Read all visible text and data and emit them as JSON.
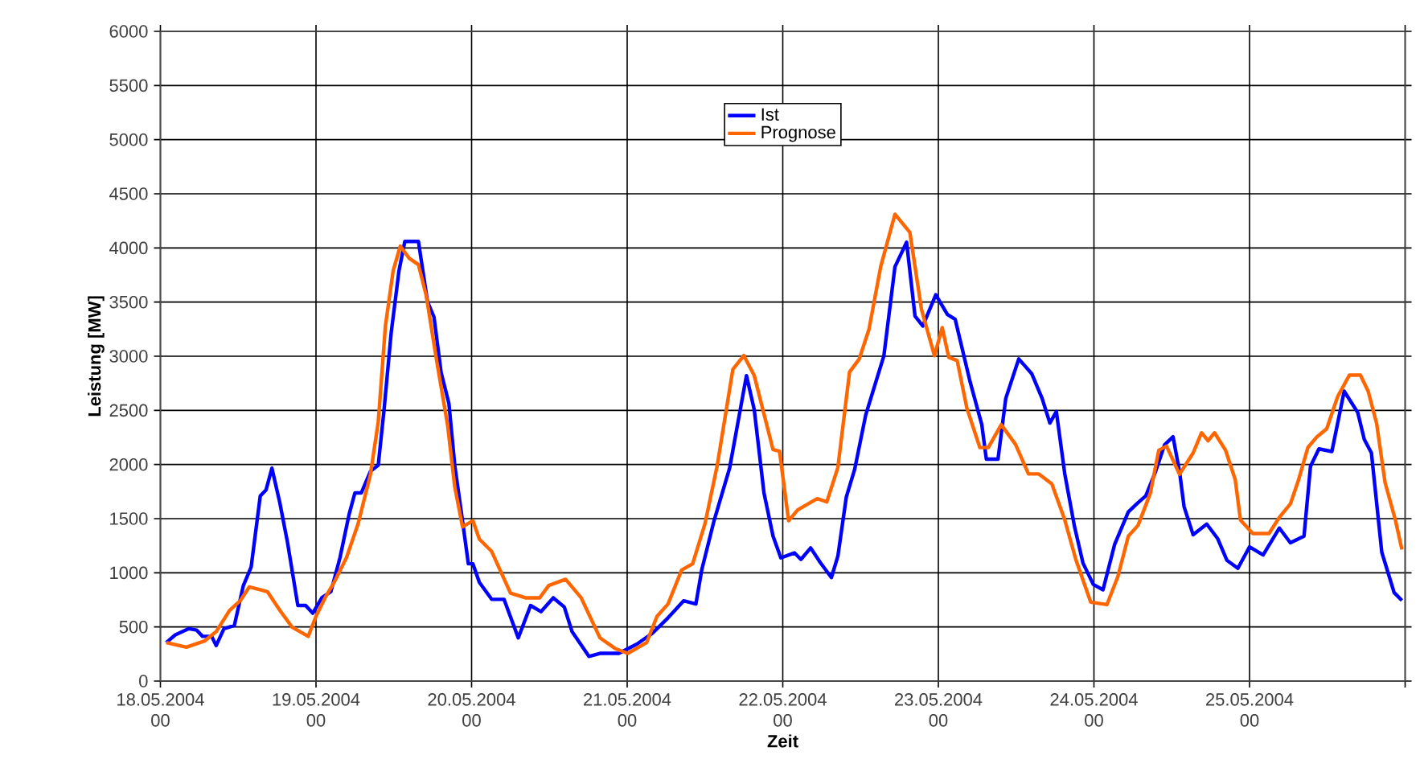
{
  "chart_data": {
    "type": "line",
    "xlabel": "Zeit",
    "ylabel": "Leistung [MW]",
    "xlim": [
      "2004-05-18T00:00",
      "2004-05-26T00:00"
    ],
    "ylim": [
      0,
      6000
    ],
    "xticks": [
      {
        "value": "2004-05-18T00:00",
        "label": "18.05.2004 00"
      },
      {
        "value": "2004-05-19T00:00",
        "label": "19.05.2004 00"
      },
      {
        "value": "2004-05-20T00:00",
        "label": "20.05.2004 00"
      },
      {
        "value": "2004-05-21T00:00",
        "label": "21.05.2004 00"
      },
      {
        "value": "2004-05-22T00:00",
        "label": "22.05.2004 00"
      },
      {
        "value": "2004-05-23T00:00",
        "label": "23.05.2004 00"
      },
      {
        "value": "2004-05-24T00:00",
        "label": "24.05.2004 00"
      },
      {
        "value": "2004-05-25T00:00",
        "label": "25.05.2004 00"
      },
      {
        "value": "2004-05-26T00:00",
        "label": null
      }
    ],
    "yticks": [
      0,
      500,
      1000,
      1500,
      2000,
      2500,
      3000,
      3500,
      4000,
      4500,
      5000,
      5500,
      6000
    ],
    "grid": true,
    "legend": "top",
    "marker": "none",
    "line_style": "solid",
    "series": [
      {
        "name": "Ist",
        "color": "#0000ff",
        "x": [
          "2004-05-18T00:54",
          "2004-05-18T02:18",
          "2004-05-18T04:24",
          "2004-05-18T05:36",
          "2004-05-18T06:30",
          "2004-05-18T07:54",
          "2004-05-18T08:36",
          "2004-05-18T09:48",
          "2004-05-18T11:24",
          "2004-05-18T12:48",
          "2004-05-18T14:00",
          "2004-05-18T15:24",
          "2004-05-18T16:18",
          "2004-05-18T17:12",
          "2004-05-18T18:24",
          "2004-05-18T19:36",
          "2004-05-18T21:12",
          "2004-05-18T22:24",
          "2004-05-18T23:30",
          "2004-05-19T00:54",
          "2004-05-19T02:18",
          "2004-05-19T03:42",
          "2004-05-19T05:06",
          "2004-05-19T06:00",
          "2004-05-19T07:00",
          "2004-05-19T08:24",
          "2004-05-19T09:36",
          "2004-05-19T10:30",
          "2004-05-19T11:36",
          "2004-05-19T12:48",
          "2004-05-19T13:42",
          "2004-05-19T15:48",
          "2004-05-19T16:18",
          "2004-05-19T17:12",
          "2004-05-19T18:12",
          "2004-05-19T19:18",
          "2004-05-19T20:30",
          "2004-05-19T21:24",
          "2004-05-19T22:24",
          "2004-05-19T23:30",
          "2004-05-20T00:12",
          "2004-05-20T01:12",
          "2004-05-20T03:06",
          "2004-05-20T05:00",
          "2004-05-20T07:12",
          "2004-05-20T09:06",
          "2004-05-20T10:42",
          "2004-05-20T12:36",
          "2004-05-20T14:18",
          "2004-05-20T15:30",
          "2004-05-20T18:06",
          "2004-05-20T19:48",
          "2004-05-20T22:42",
          "2004-05-21T01:30",
          "2004-05-21T03:54",
          "2004-05-21T06:18",
          "2004-05-21T08:42",
          "2004-05-21T10:36",
          "2004-05-21T11:30",
          "2004-05-21T13:24",
          "2004-05-21T15:48",
          "2004-05-21T18:24",
          "2004-05-21T19:36",
          "2004-05-21T21:06",
          "2004-05-21T22:30",
          "2004-05-21T23:42",
          "2004-05-22T01:48",
          "2004-05-22T02:48",
          "2004-05-22T04:18",
          "2004-05-22T05:48",
          "2004-05-22T07:30",
          "2004-05-22T08:30",
          "2004-05-22T09:48",
          "2004-05-22T11:06",
          "2004-05-22T12:48",
          "2004-05-22T15:36",
          "2004-05-22T17:18",
          "2004-05-22T19:06",
          "2004-05-22T20:24",
          "2004-05-22T21:36",
          "2004-05-22T23:36",
          "2004-05-23T01:24",
          "2004-05-23T02:36",
          "2004-05-23T04:54",
          "2004-05-23T06:42",
          "2004-05-23T07:24",
          "2004-05-23T09:12",
          "2004-05-23T10:24",
          "2004-05-23T12:24",
          "2004-05-23T14:24",
          "2004-05-23T16:00",
          "2004-05-23T17:12",
          "2004-05-23T18:12",
          "2004-05-23T19:30",
          "2004-05-23T21:00",
          "2004-05-23T22:18",
          "2004-05-23T23:54",
          "2004-05-24T01:24",
          "2004-05-24T03:12",
          "2004-05-24T05:18",
          "2004-05-24T06:36",
          "2004-05-24T08:00",
          "2004-05-24T09:30",
          "2004-05-24T10:54",
          "2004-05-24T12:12",
          "2004-05-24T13:12",
          "2004-05-24T13:54",
          "2004-05-24T15:18",
          "2004-05-24T17:24",
          "2004-05-24T19:06",
          "2004-05-24T20:30",
          "2004-05-24T22:12",
          "2004-05-25T00:00",
          "2004-05-25T02:06",
          "2004-05-25T04:36",
          "2004-05-25T06:18",
          "2004-05-25T08:24",
          "2004-05-25T09:24",
          "2004-05-25T10:42",
          "2004-05-25T12:42",
          "2004-05-25T14:36",
          "2004-05-25T16:42",
          "2004-05-25T17:42",
          "2004-05-25T18:48",
          "2004-05-25T20:24",
          "2004-05-25T22:18",
          "2004-05-25T23:30"
        ],
        "values": [
          356,
          427,
          484,
          470,
          413,
          413,
          328,
          484,
          513,
          883,
          1054,
          1709,
          1766,
          1966,
          1652,
          1282,
          698,
          698,
          627,
          769,
          826,
          1140,
          1538,
          1738,
          1738,
          1937,
          1994,
          2507,
          3219,
          3789,
          4060,
          4060,
          3860,
          3504,
          3362,
          2849,
          2564,
          1994,
          1567,
          1083,
          1083,
          912,
          755,
          755,
          399,
          698,
          641,
          769,
          684,
          456,
          228,
          256,
          256,
          342,
          442,
          584,
          741,
          712,
          1026,
          1481,
          1966,
          2821,
          2507,
          1738,
          1339,
          1138,
          1184,
          1123,
          1230,
          1093,
          956,
          1154,
          1700,
          1958,
          2459,
          3005,
          3825,
          4053,
          3370,
          3279,
          3567,
          3385,
          3340,
          2763,
          2368,
          2049,
          2049,
          2611,
          2975,
          2839,
          2611,
          2383,
          2489,
          1913,
          1427,
          1091,
          892,
          843,
          1264,
          1562,
          1636,
          1711,
          1934,
          2182,
          2256,
          1934,
          1611,
          1351,
          1450,
          1314,
          1116,
          1041,
          1240,
          1165,
          1413,
          1277,
          1339,
          1983,
          2144,
          2120,
          2677,
          2479,
          2231,
          2107,
          1190,
          818,
          744
        ]
      },
      {
        "name": "Prognose",
        "color": "#ff6600",
        "x": [
          "2004-05-18T00:54",
          "2004-05-18T04:00",
          "2004-05-18T06:48",
          "2004-05-18T08:36",
          "2004-05-18T10:42",
          "2004-05-18T12:18",
          "2004-05-18T13:42",
          "2004-05-18T15:36",
          "2004-05-18T16:30",
          "2004-05-18T18:24",
          "2004-05-18T20:18",
          "2004-05-18T22:48",
          "2004-05-19T00:00",
          "2004-05-19T01:24",
          "2004-05-19T02:48",
          "2004-05-19T04:42",
          "2004-05-19T06:30",
          "2004-05-19T08:24",
          "2004-05-19T09:36",
          "2004-05-19T10:42",
          "2004-05-19T11:54",
          "2004-05-19T13:00",
          "2004-05-19T14:24",
          "2004-05-19T15:48",
          "2004-05-19T17:00",
          "2004-05-19T18:36",
          "2004-05-19T20:18",
          "2004-05-19T21:24",
          "2004-05-19T22:36",
          "2004-05-20T00:12",
          "2004-05-20T01:12",
          "2004-05-20T03:06",
          "2004-05-20T06:00",
          "2004-05-20T08:18",
          "2004-05-20T10:30",
          "2004-05-20T11:54",
          "2004-05-20T14:30",
          "2004-05-20T16:54",
          "2004-05-20T19:48",
          "2004-05-20T22:12",
          "2004-05-21T00:06",
          "2004-05-21T03:00",
          "2004-05-21T04:36",
          "2004-05-21T06:18",
          "2004-05-21T08:24",
          "2004-05-21T10:06",
          "2004-05-21T12:00",
          "2004-05-21T13:54",
          "2004-05-21T16:18",
          "2004-05-21T18:00",
          "2004-05-21T19:36",
          "2004-05-21T22:30",
          "2004-05-21T23:30",
          "2004-05-22T00:54",
          "2004-05-22T02:18",
          "2004-05-22T05:18",
          "2004-05-22T06:48",
          "2004-05-22T08:30",
          "2004-05-22T10:18",
          "2004-05-22T11:48",
          "2004-05-22T13:18",
          "2004-05-22T15:06",
          "2004-05-22T17:18",
          "2004-05-22T19:36",
          "2004-05-22T21:24",
          "2004-05-22T23:24",
          "2004-05-23T00:36",
          "2004-05-23T01:36",
          "2004-05-23T02:54",
          "2004-05-23T04:24",
          "2004-05-23T06:24",
          "2004-05-23T07:42",
          "2004-05-23T09:42",
          "2004-05-23T11:54",
          "2004-05-23T13:54",
          "2004-05-23T15:30",
          "2004-05-23T17:30",
          "2004-05-23T19:30",
          "2004-05-23T21:12",
          "2004-05-23T23:30",
          "2004-05-24T02:00",
          "2004-05-24T03:42",
          "2004-05-24T05:18",
          "2004-05-24T06:48",
          "2004-05-24T08:42",
          "2004-05-24T10:00",
          "2004-05-24T11:12",
          "2004-05-24T13:12",
          "2004-05-24T15:18",
          "2004-05-24T16:36",
          "2004-05-24T17:36",
          "2004-05-24T18:36",
          "2004-05-24T20:18",
          "2004-05-24T21:48",
          "2004-05-24T22:36",
          "2004-05-25T00:30",
          "2004-05-25T03:00",
          "2004-05-25T04:36",
          "2004-05-25T06:18",
          "2004-05-25T07:30",
          "2004-05-25T09:00",
          "2004-05-25T10:24",
          "2004-05-25T11:54",
          "2004-05-25T13:36",
          "2004-05-25T15:24",
          "2004-05-25T17:06",
          "2004-05-25T18:18",
          "2004-05-25T19:36",
          "2004-05-25T20:54",
          "2004-05-25T22:30",
          "2004-05-25T23:30"
        ],
        "values": [
          356,
          313,
          370,
          456,
          655,
          741,
          869,
          840,
          826,
          655,
          499,
          413,
          598,
          769,
          912,
          1140,
          1453,
          1909,
          2393,
          3276,
          3789,
          4017,
          3903,
          3846,
          3561,
          2963,
          2365,
          1795,
          1425,
          1481,
          1311,
          1197,
          812,
          769,
          769,
          883,
          940,
          769,
          399,
          299,
          256,
          356,
          598,
          712,
          1026,
          1083,
          1453,
          1994,
          2878,
          3006,
          2821,
          2137,
          2123,
          1481,
          1581,
          1685,
          1655,
          1973,
          2854,
          2975,
          3249,
          3825,
          4311,
          4144,
          3431,
          3005,
          3264,
          2990,
          2960,
          2520,
          2156,
          2156,
          2368,
          2186,
          1913,
          1913,
          1822,
          1488,
          1123,
          729,
          706,
          967,
          1339,
          1438,
          1735,
          2132,
          2169,
          1909,
          2107,
          2293,
          2219,
          2293,
          2132,
          1859,
          1487,
          1363,
          1363,
          1512,
          1636,
          1847,
          2157,
          2256,
          2330,
          2628,
          2826,
          2826,
          2677,
          2380,
          1834,
          1487,
          1215
        ]
      }
    ]
  }
}
